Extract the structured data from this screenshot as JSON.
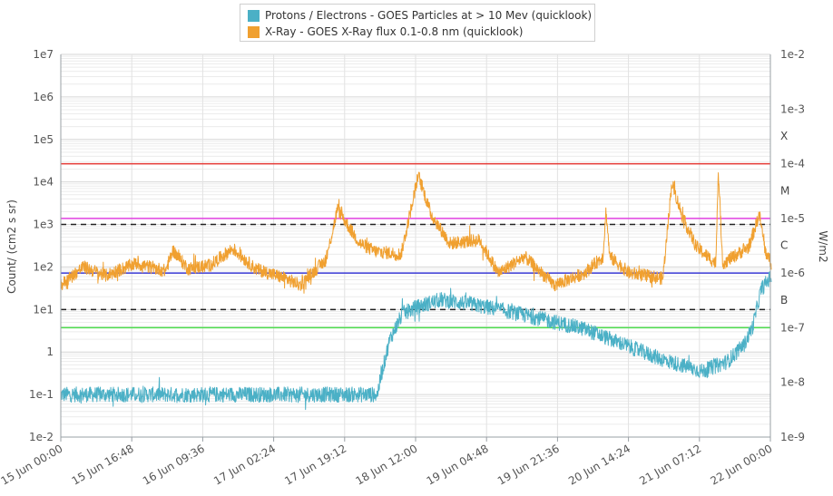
{
  "chart_data": {
    "type": "line",
    "legend": [
      {
        "label": "Protons / Electrons - GOES Particles at > 10 Mev (quicklook)",
        "color": "#4bb0c6"
      },
      {
        "label": "X-Ray - GOES X-Ray flux 0.1-0.8 nm (quicklook)",
        "color": "#f0a030"
      }
    ],
    "legend_position": "top-center",
    "grid": true,
    "left_axis": {
      "label": "Count/ (cm2 s sr)",
      "scale": "log",
      "range": [
        0.01,
        10000000
      ],
      "ticks": [
        "1e-2",
        "1e-1",
        "1",
        "1e1",
        "1e2",
        "1e3",
        "1e4",
        "1e5",
        "1e6",
        "1e7"
      ]
    },
    "right_axis": {
      "label": "W/m2",
      "scale": "log",
      "range": [
        1e-09,
        0.01
      ],
      "ticks": [
        "1e-9",
        "1e-8",
        "1e-7",
        "1e-6",
        "1e-5",
        "1e-4",
        "1e-3",
        "1e-2"
      ],
      "flare_classes": [
        {
          "label": "B",
          "value": 3.2e-07
        },
        {
          "label": "C",
          "value": 3.2e-06
        },
        {
          "label": "M",
          "value": 3.2e-05
        },
        {
          "label": "X",
          "value": 0.00032
        }
      ]
    },
    "x_axis": {
      "range": [
        "15 Jun 00:00",
        "22 Jun 00:00"
      ],
      "ticks": [
        "15 Jun 00:00",
        "15 Jun 16:48",
        "16 Jun 09:36",
        "17 Jun 02:24",
        "17 Jun 19:12",
        "18 Jun 12:00",
        "19 Jun 04:48",
        "19 Jun 21:36",
        "20 Jun 14:24",
        "21 Jun 07:12",
        "22 Jun 00:00"
      ]
    },
    "threshold_lines": [
      {
        "color": "#e53935",
        "style": "solid",
        "value": 0.0001,
        "axis": "right"
      },
      {
        "color": "#e040e0",
        "style": "solid",
        "value": 1e-05,
        "axis": "right"
      },
      {
        "color": "#3a3ad6",
        "style": "solid",
        "value": 1e-06,
        "axis": "right"
      },
      {
        "color": "#4cdc4c",
        "style": "solid",
        "value": 1e-07,
        "axis": "right"
      },
      {
        "color": "#222222",
        "style": "dashed",
        "value": 1000,
        "axis": "left"
      },
      {
        "color": "#222222",
        "style": "dashed",
        "value": 10,
        "axis": "left"
      }
    ],
    "series": [
      {
        "name": "Protons / Electrons - GOES Particles at > 10 Mev (quicklook)",
        "axis": "left",
        "color": "#4bb0c6",
        "noise": 0.18,
        "points": [
          [
            0,
            0.1
          ],
          [
            1.0,
            0.1
          ],
          [
            2.0,
            0.1
          ],
          [
            3.0,
            0.1
          ],
          [
            3.75,
            0.1
          ],
          [
            3.8,
            0.3
          ],
          [
            3.9,
            2
          ],
          [
            4.05,
            8
          ],
          [
            4.25,
            12
          ],
          [
            4.5,
            17
          ],
          [
            4.8,
            14
          ],
          [
            5.2,
            10
          ],
          [
            5.7,
            6
          ],
          [
            6.2,
            3.5
          ],
          [
            6.8,
            1.2
          ],
          [
            7.1,
            0.7
          ],
          [
            7.6,
            0.35
          ],
          [
            7.9,
            0.6
          ],
          [
            8.1,
            1.5
          ],
          [
            8.2,
            4
          ],
          [
            8.3,
            30
          ],
          [
            8.42,
            60
          ]
        ]
      },
      {
        "name": "X-Ray - GOES X-Ray flux 0.1-0.8 nm (quicklook)",
        "axis": "right",
        "color": "#f0a030",
        "noise": 0.12,
        "points": [
          [
            0,
            6e-07
          ],
          [
            0.3,
            1.3e-06
          ],
          [
            0.6,
            9e-07
          ],
          [
            1.0,
            1.5e-06
          ],
          [
            1.4,
            1.1e-06
          ],
          [
            1.5,
            2.6e-06
          ],
          [
            1.7,
            1.2e-06
          ],
          [
            2.0,
            1.4e-06
          ],
          [
            2.3,
            2.8e-06
          ],
          [
            2.6,
            1.2e-06
          ],
          [
            3.0,
            8e-07
          ],
          [
            3.2,
            6e-07
          ],
          [
            3.55,
            1.8e-06
          ],
          [
            3.7,
            1.5e-05
          ],
          [
            3.85,
            7e-06
          ],
          [
            4.0,
            3.5e-06
          ],
          [
            4.2,
            2.5e-06
          ],
          [
            4.55,
            2.2e-06
          ],
          [
            4.78,
            6.2e-05
          ],
          [
            4.95,
            1.2e-05
          ],
          [
            5.2,
            3.5e-06
          ],
          [
            5.6,
            4e-06
          ],
          [
            5.85,
            1e-06
          ],
          [
            6.2,
            2e-06
          ],
          [
            6.6,
            6e-07
          ],
          [
            7.0,
            1e-06
          ],
          [
            7.25,
            2e-06
          ],
          [
            7.29,
            1.4e-05
          ],
          [
            7.34,
            2e-06
          ],
          [
            7.6,
            1e-06
          ],
          [
            8.05,
            8e-07
          ],
          [
            8.17,
            4.5e-05
          ],
          [
            8.32,
            1e-05
          ],
          [
            8.5,
            3e-06
          ],
          [
            8.76,
            1.5e-06
          ],
          [
            8.79,
            8e-05
          ],
          [
            8.85,
            1.5e-06
          ],
          [
            9.2,
            3e-06
          ],
          [
            9.34,
            1.2e-05
          ],
          [
            9.42,
            2.5e-06
          ],
          [
            9.5,
            1.5e-06
          ]
        ]
      }
    ]
  }
}
